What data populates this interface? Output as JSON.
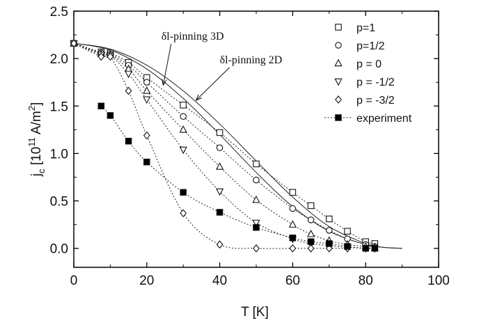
{
  "chart_data": {
    "type": "scatter",
    "x_label": "T [K]",
    "y_label_parts": {
      "base": "j",
      "sub": "c",
      "unit_pre": " [10",
      "unit_exp": "11",
      "unit_mid": " A/m",
      "unit_sup": "2",
      "unit_post": "]"
    },
    "xlim": [
      0,
      100
    ],
    "ylim": [
      -0.2,
      2.5
    ],
    "x_ticks": [
      0,
      20,
      40,
      60,
      80,
      100
    ],
    "y_ticks": [
      0.0,
      0.5,
      1.0,
      1.5,
      2.0,
      2.5
    ],
    "x_tick_labels": [
      "0",
      "20",
      "40",
      "60",
      "80",
      "100"
    ],
    "y_tick_labels": [
      "0.0",
      "0.5",
      "1.0",
      "1.5",
      "2.0",
      "2.5"
    ],
    "grid": false,
    "legend_position": "top-right",
    "curves": [
      {
        "name": "δl-pinning 3D",
        "x": [
          0,
          10,
          20,
          30,
          40,
          50,
          60,
          70,
          80,
          85,
          90
        ],
        "y": [
          2.16,
          2.09,
          1.89,
          1.58,
          1.2,
          0.8,
          0.44,
          0.18,
          0.04,
          0.01,
          0.0
        ]
      },
      {
        "name": "δl-pinning 2D",
        "x": [
          0,
          10,
          20,
          30,
          40,
          50,
          60,
          70,
          80,
          85,
          90
        ],
        "y": [
          2.16,
          2.1,
          1.93,
          1.66,
          1.31,
          0.92,
          0.54,
          0.23,
          0.05,
          0.01,
          0.0
        ]
      }
    ],
    "annotations": [
      {
        "text": "δl-pinning 3D",
        "x": 24,
        "y": 2.2,
        "arrow_to": [
          24.5,
          1.72
        ]
      },
      {
        "text": "δl-pinning 2D",
        "x": 40,
        "y": 1.95,
        "arrow_to": [
          33.5,
          1.56
        ]
      }
    ],
    "series": [
      {
        "name": "p=1",
        "marker": "square-open",
        "x": [
          0,
          7.5,
          10,
          15,
          20,
          30,
          40,
          50,
          60,
          65,
          70,
          75,
          80,
          82.5
        ],
        "y": [
          2.16,
          2.07,
          2.06,
          1.96,
          1.8,
          1.51,
          1.22,
          0.89,
          0.59,
          0.45,
          0.31,
          0.18,
          0.07,
          0.05
        ]
      },
      {
        "name": "p=1/2",
        "marker": "circle-open",
        "x": [
          0,
          7.5,
          10,
          15,
          20,
          30,
          40,
          50,
          60,
          65,
          70,
          75,
          80,
          82.5
        ],
        "y": [
          2.16,
          2.06,
          2.05,
          1.93,
          1.75,
          1.39,
          1.06,
          0.72,
          0.42,
          0.3,
          0.19,
          0.1,
          0.04,
          0.02
        ]
      },
      {
        "name": "p = 0",
        "marker": "triangle-up-open",
        "x": [
          0,
          7.5,
          10,
          15,
          20,
          30,
          40,
          50,
          60,
          65,
          70,
          75,
          80,
          82.5
        ],
        "y": [
          2.16,
          2.05,
          2.04,
          1.89,
          1.66,
          1.25,
          0.86,
          0.51,
          0.25,
          0.15,
          0.08,
          0.04,
          0.02,
          0.01
        ]
      },
      {
        "name": "p = -1/2",
        "marker": "triangle-down-open",
        "x": [
          0,
          7.5,
          10,
          15,
          20,
          30,
          40,
          50,
          60,
          65,
          70,
          75,
          80,
          82.5
        ],
        "y": [
          2.16,
          2.04,
          2.03,
          1.84,
          1.57,
          1.04,
          0.6,
          0.27,
          0.1,
          0.05,
          0.03,
          0.01,
          0.0,
          0.0
        ]
      },
      {
        "name": "p = -3/2",
        "marker": "diamond-open",
        "x": [
          0,
          7.5,
          10,
          15,
          20,
          30,
          40,
          50,
          60,
          65,
          70,
          75
        ],
        "y": [
          2.16,
          2.02,
          2.02,
          1.66,
          1.19,
          0.37,
          0.04,
          0.0,
          0.0,
          0.0,
          0.0,
          0.0
        ]
      },
      {
        "name": "experiment",
        "marker": "square-filled",
        "x": [
          7.5,
          10,
          15,
          20,
          30,
          40,
          50,
          60,
          65,
          70,
          75,
          80,
          82.5
        ],
        "y": [
          1.5,
          1.4,
          1.13,
          0.91,
          0.59,
          0.38,
          0.22,
          0.11,
          0.07,
          0.05,
          0.02,
          0.0,
          0.0
        ]
      }
    ]
  }
}
